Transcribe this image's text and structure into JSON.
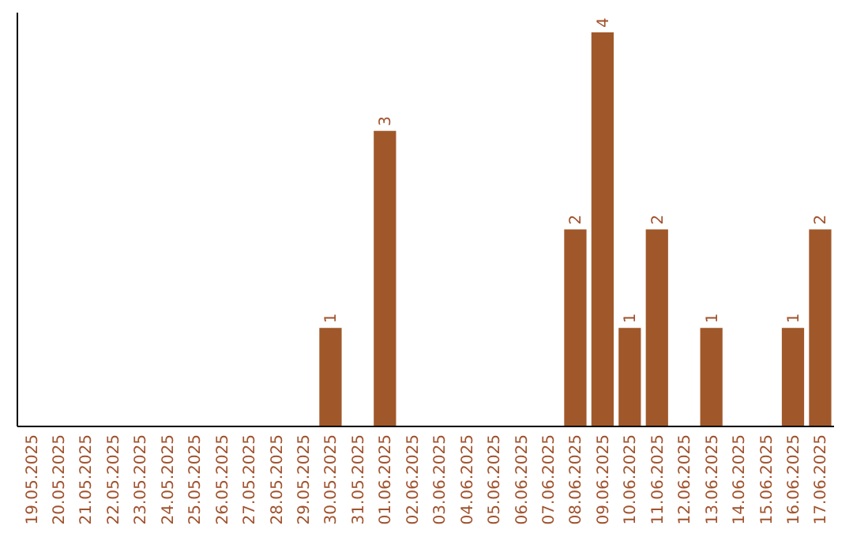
{
  "chart_data": {
    "type": "bar",
    "categories": [
      "19.05.2025",
      "20.05.2025",
      "21.05.2025",
      "22.05.2025",
      "23.05.2025",
      "24.05.2025",
      "25.05.2025",
      "26.05.2025",
      "27.05.2025",
      "28.05.2025",
      "29.05.2025",
      "30.05.2025",
      "31.05.2025",
      "01.06.2025",
      "02.06.2025",
      "03.06.2025",
      "04.06.2025",
      "05.06.2025",
      "06.06.2025",
      "07.06.2025",
      "08.06.2025",
      "09.06.2025",
      "10.06.2025",
      "11.06.2025",
      "12.06.2025",
      "13.06.2025",
      "14.06.2025",
      "15.06.2025",
      "16.06.2025",
      "17.06.2025"
    ],
    "values": [
      0,
      0,
      0,
      0,
      0,
      0,
      0,
      0,
      0,
      0,
      0,
      1,
      0,
      3,
      0,
      0,
      0,
      0,
      0,
      0,
      2,
      4,
      1,
      2,
      0,
      1,
      0,
      0,
      1,
      2
    ],
    "value_labels": [
      null,
      null,
      null,
      null,
      null,
      null,
      null,
      null,
      null,
      null,
      null,
      "1",
      null,
      "3",
      null,
      null,
      null,
      null,
      null,
      null,
      "2",
      "4",
      "1",
      "2",
      null,
      "1",
      null,
      null,
      "1",
      "2"
    ],
    "color": "#a0582a",
    "ylim": [
      0,
      4.2
    ],
    "tick_labels": "x"
  }
}
